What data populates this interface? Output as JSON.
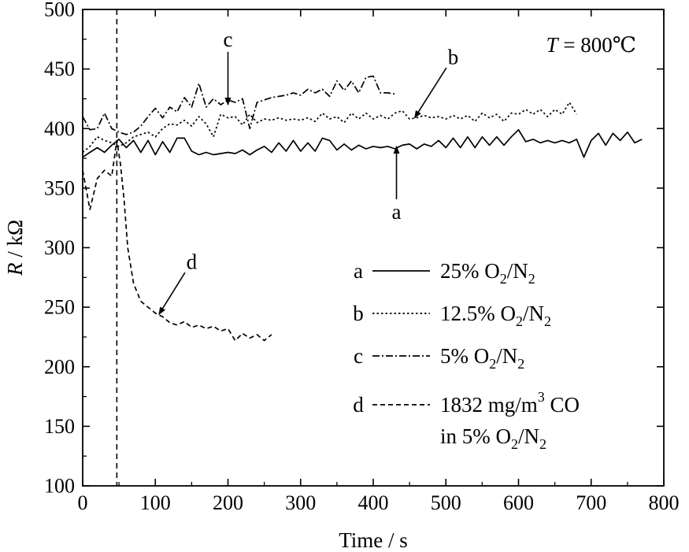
{
  "chart_data": {
    "type": "line",
    "xlabel": "Time / s",
    "ylabel_symbol": "R",
    "ylabel_unit": " / kΩ",
    "xlim": [
      0,
      800
    ],
    "ylim": [
      100,
      500
    ],
    "x_ticks": [
      0,
      100,
      200,
      300,
      400,
      500,
      600,
      700,
      800
    ],
    "y_ticks": [
      100,
      150,
      200,
      250,
      300,
      350,
      400,
      450,
      500
    ],
    "temperature": {
      "symbol": "T",
      "text": " = 800℃"
    },
    "vertical_line_x": 47,
    "series": [
      {
        "name": "a",
        "style": "solid",
        "values": [
          [
            0,
            376
          ],
          [
            10,
            380
          ],
          [
            20,
            384
          ],
          [
            30,
            380
          ],
          [
            40,
            386
          ],
          [
            50,
            391
          ],
          [
            60,
            384
          ],
          [
            70,
            390
          ],
          [
            80,
            380
          ],
          [
            90,
            390
          ],
          [
            100,
            378
          ],
          [
            110,
            389
          ],
          [
            120,
            380
          ],
          [
            130,
            392
          ],
          [
            140,
            392
          ],
          [
            150,
            381
          ],
          [
            160,
            378
          ],
          [
            170,
            380
          ],
          [
            180,
            378
          ],
          [
            190,
            379
          ],
          [
            200,
            380
          ],
          [
            210,
            379
          ],
          [
            220,
            382
          ],
          [
            230,
            378
          ],
          [
            240,
            382
          ],
          [
            250,
            385
          ],
          [
            260,
            380
          ],
          [
            270,
            388
          ],
          [
            280,
            381
          ],
          [
            290,
            390
          ],
          [
            300,
            381
          ],
          [
            310,
            388
          ],
          [
            320,
            381
          ],
          [
            330,
            392
          ],
          [
            340,
            390
          ],
          [
            350,
            382
          ],
          [
            360,
            387
          ],
          [
            370,
            382
          ],
          [
            380,
            386
          ],
          [
            390,
            383
          ],
          [
            400,
            385
          ],
          [
            410,
            384
          ],
          [
            420,
            385
          ],
          [
            430,
            383
          ],
          [
            440,
            386
          ],
          [
            450,
            387
          ],
          [
            460,
            383
          ],
          [
            470,
            387
          ],
          [
            480,
            385
          ],
          [
            490,
            390
          ],
          [
            500,
            384
          ],
          [
            510,
            392
          ],
          [
            520,
            384
          ],
          [
            530,
            393
          ],
          [
            540,
            384
          ],
          [
            550,
            393
          ],
          [
            560,
            386
          ],
          [
            570,
            393
          ],
          [
            580,
            386
          ],
          [
            590,
            393
          ],
          [
            600,
            399
          ],
          [
            610,
            389
          ],
          [
            620,
            391
          ],
          [
            630,
            388
          ],
          [
            640,
            390
          ],
          [
            650,
            388
          ],
          [
            660,
            390
          ],
          [
            670,
            388
          ],
          [
            680,
            391
          ],
          [
            690,
            376
          ],
          [
            700,
            390
          ],
          [
            710,
            396
          ],
          [
            720,
            386
          ],
          [
            730,
            396
          ],
          [
            740,
            390
          ],
          [
            750,
            397
          ],
          [
            760,
            388
          ],
          [
            770,
            391
          ]
        ]
      },
      {
        "name": "b",
        "style": "dotted",
        "values": [
          [
            0,
            380
          ],
          [
            10,
            385
          ],
          [
            20,
            393
          ],
          [
            30,
            390
          ],
          [
            40,
            388
          ],
          [
            50,
            385
          ],
          [
            60,
            388
          ],
          [
            70,
            393
          ],
          [
            80,
            395
          ],
          [
            90,
            397
          ],
          [
            100,
            393
          ],
          [
            110,
            400
          ],
          [
            120,
            404
          ],
          [
            130,
            403
          ],
          [
            140,
            407
          ],
          [
            150,
            402
          ],
          [
            160,
            410
          ],
          [
            170,
            404
          ],
          [
            180,
            393
          ],
          [
            190,
            412
          ],
          [
            200,
            409
          ],
          [
            210,
            410
          ],
          [
            220,
            403
          ],
          [
            230,
            412
          ],
          [
            240,
            405
          ],
          [
            250,
            408
          ],
          [
            260,
            407
          ],
          [
            270,
            409
          ],
          [
            280,
            407
          ],
          [
            290,
            408
          ],
          [
            300,
            407
          ],
          [
            310,
            409
          ],
          [
            320,
            406
          ],
          [
            330,
            413
          ],
          [
            340,
            408
          ],
          [
            350,
            410
          ],
          [
            360,
            405
          ],
          [
            370,
            413
          ],
          [
            380,
            408
          ],
          [
            390,
            413
          ],
          [
            400,
            408
          ],
          [
            410,
            411
          ],
          [
            420,
            408
          ],
          [
            430,
            413
          ],
          [
            440,
            415
          ],
          [
            450,
            408
          ],
          [
            460,
            409
          ],
          [
            470,
            411
          ],
          [
            480,
            409
          ],
          [
            490,
            410
          ],
          [
            500,
            408
          ],
          [
            510,
            411
          ],
          [
            520,
            408
          ],
          [
            530,
            411
          ],
          [
            540,
            406
          ],
          [
            550,
            413
          ],
          [
            560,
            409
          ],
          [
            570,
            412
          ],
          [
            580,
            406
          ],
          [
            590,
            413
          ],
          [
            600,
            412
          ],
          [
            610,
            416
          ],
          [
            620,
            412
          ],
          [
            630,
            416
          ],
          [
            640,
            410
          ],
          [
            650,
            416
          ],
          [
            660,
            412
          ],
          [
            670,
            422
          ],
          [
            680,
            412
          ]
        ]
      },
      {
        "name": "c",
        "style": "dashdot",
        "values": [
          [
            0,
            410
          ],
          [
            10,
            399
          ],
          [
            20,
            400
          ],
          [
            30,
            413
          ],
          [
            40,
            400
          ],
          [
            50,
            397
          ],
          [
            60,
            395
          ],
          [
            70,
            397
          ],
          [
            80,
            402
          ],
          [
            90,
            410
          ],
          [
            100,
            417
          ],
          [
            110,
            409
          ],
          [
            120,
            418
          ],
          [
            130,
            414
          ],
          [
            140,
            426
          ],
          [
            150,
            418
          ],
          [
            160,
            438
          ],
          [
            170,
            418
          ],
          [
            180,
            425
          ],
          [
            190,
            420
          ],
          [
            200,
            424
          ],
          [
            210,
            422
          ],
          [
            220,
            425
          ],
          [
            230,
            400
          ],
          [
            240,
            422
          ],
          [
            250,
            424
          ],
          [
            260,
            426
          ],
          [
            270,
            427
          ],
          [
            280,
            428
          ],
          [
            290,
            430
          ],
          [
            300,
            428
          ],
          [
            310,
            433
          ],
          [
            320,
            430
          ],
          [
            330,
            433
          ],
          [
            340,
            427
          ],
          [
            350,
            440
          ],
          [
            360,
            432
          ],
          [
            370,
            440
          ],
          [
            380,
            430
          ],
          [
            390,
            443
          ],
          [
            400,
            444
          ],
          [
            410,
            430
          ],
          [
            420,
            430
          ],
          [
            430,
            429
          ]
        ]
      },
      {
        "name": "d",
        "style": "dashed",
        "values": [
          [
            0,
            365
          ],
          [
            10,
            332
          ],
          [
            20,
            358
          ],
          [
            30,
            365
          ],
          [
            40,
            360
          ],
          [
            47,
            390
          ],
          [
            52,
            370
          ],
          [
            57,
            340
          ],
          [
            62,
            300
          ],
          [
            70,
            270
          ],
          [
            80,
            255
          ],
          [
            90,
            250
          ],
          [
            100,
            245
          ],
          [
            110,
            242
          ],
          [
            120,
            237
          ],
          [
            130,
            235
          ],
          [
            140,
            238
          ],
          [
            150,
            233
          ],
          [
            160,
            235
          ],
          [
            170,
            232
          ],
          [
            180,
            234
          ],
          [
            190,
            230
          ],
          [
            200,
            232
          ],
          [
            210,
            222
          ],
          [
            220,
            228
          ],
          [
            230,
            224
          ],
          [
            240,
            227
          ],
          [
            250,
            222
          ],
          [
            260,
            227
          ]
        ]
      }
    ],
    "annotations": [
      {
        "label": "a",
        "at": [
          432,
          385
        ],
        "text_at": [
          432,
          330
        ]
      },
      {
        "label": "b",
        "at": [
          457,
          409
        ],
        "text_at": [
          510,
          460
        ]
      },
      {
        "label": "c",
        "at": [
          200,
          420
        ],
        "text_at": [
          200,
          475
        ]
      },
      {
        "label": "d",
        "at": [
          105,
          244
        ],
        "text_at": [
          150,
          288
        ]
      }
    ],
    "legend": {
      "placement": "bottom-right",
      "entries": [
        {
          "key": "a",
          "style": "solid",
          "lines": [
            [
              {
                "t": "25% O"
              },
              {
                "t": "2",
                "s": "sub"
              },
              {
                "t": "/N"
              },
              {
                "t": "2",
                "s": "sub"
              }
            ]
          ]
        },
        {
          "key": "b",
          "style": "dotted",
          "lines": [
            [
              {
                "t": "12.5% O"
              },
              {
                "t": "2",
                "s": "sub"
              },
              {
                "t": "/N"
              },
              {
                "t": "2",
                "s": "sub"
              }
            ]
          ]
        },
        {
          "key": "c",
          "style": "dashdot",
          "lines": [
            [
              {
                "t": "5% O"
              },
              {
                "t": "2",
                "s": "sub"
              },
              {
                "t": "/N"
              },
              {
                "t": "2",
                "s": "sub"
              }
            ]
          ]
        },
        {
          "key": "d",
          "style": "dashed",
          "lines": [
            [
              {
                "t": "1832 mg/m"
              },
              {
                "t": "3",
                "s": "sup"
              },
              {
                "t": " CO"
              }
            ],
            [
              {
                "t": "in 5% O"
              },
              {
                "t": "2",
                "s": "sub"
              },
              {
                "t": "/N"
              },
              {
                "t": "2",
                "s": "sub"
              }
            ]
          ]
        }
      ]
    }
  }
}
